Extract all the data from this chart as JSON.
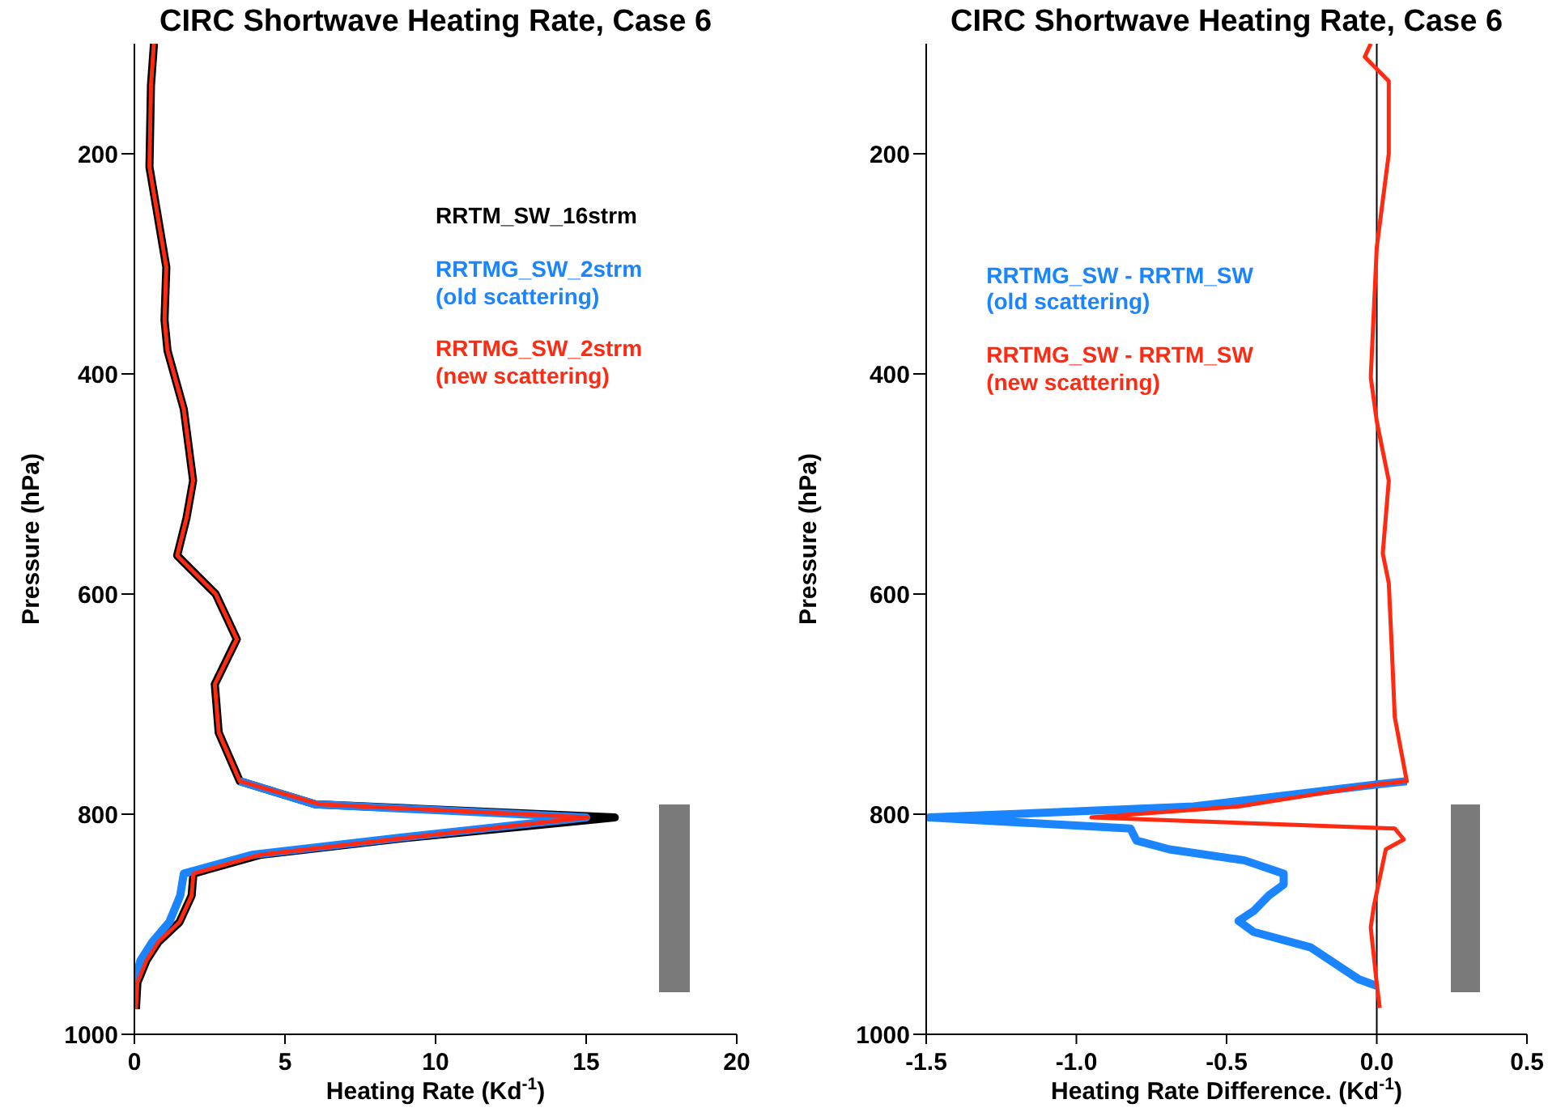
{
  "chart_data": [
    {
      "type": "line",
      "title": "CIRC Shortwave Heating Rate, Case 6",
      "xlabel": "Heating Rate (Kd$^{-1}$)",
      "ylabel": "Pressure (hPa)",
      "xlim": [
        0,
        20
      ],
      "xticks": [
        0,
        5,
        10,
        15,
        20
      ],
      "ylim": [
        1000,
        100
      ],
      "yticks": [
        200,
        400,
        600,
        800,
        1000
      ],
      "grid": false,
      "legend": "top right",
      "marker": "none",
      "line_style": "solid",
      "series": [
        {
          "name": "RRTM_SW_16strm",
          "color": "#000000",
          "x": [
            0.65,
            0.55,
            0.5,
            1.06,
            1.0,
            1.1,
            1.64,
            1.95,
            1.73,
            1.42,
            2.7,
            3.4,
            2.67,
            2.8,
            3.5,
            6.0,
            15.95,
            8.85,
            4.16,
            1.96,
            1.9,
            1.5,
            0.8,
            0.4,
            0.1,
            0.05
          ],
          "values": [
            100,
            138,
            212,
            303,
            351,
            379,
            432,
            497,
            531,
            565,
            600,
            641,
            682,
            726,
            770,
            791,
            803,
            822,
            837,
            854,
            874,
            898,
            916,
            933,
            953,
            977
          ]
        },
        {
          "name": "RRTMG_SW_2strm\n(old scattering)",
          "color": "#1a85ff",
          "x": [
            3.5,
            6.0,
            15.0,
            8.6,
            3.9,
            1.64,
            1.52,
            1.16,
            0.6,
            0.2,
            0.0
          ],
          "values": [
            770,
            791,
            803,
            822,
            837,
            854,
            874,
            898,
            916,
            933,
            953
          ]
        },
        {
          "name": "RRTMG_SW_2strm\n(new scattering)",
          "color": "#ff2a12",
          "x": [
            0.65,
            0.55,
            0.5,
            1.06,
            1.0,
            1.1,
            1.64,
            1.95,
            1.73,
            1.42,
            2.7,
            3.4,
            2.67,
            2.8,
            3.5,
            6.15,
            15.06,
            8.85,
            4.16,
            1.96,
            1.9,
            1.5,
            0.8,
            0.4,
            0.1,
            0.05
          ],
          "values": [
            100,
            138,
            212,
            303,
            351,
            379,
            432,
            497,
            531,
            565,
            600,
            641,
            682,
            726,
            770,
            791,
            803,
            822,
            837,
            854,
            874,
            898,
            916,
            933,
            953,
            977
          ]
        }
      ]
    },
    {
      "type": "line",
      "title": "CIRC Shortwave Heating Rate, Case 6",
      "xlabel": "Heating Rate Difference. (Kd$^{-1}$)",
      "ylabel": "Pressure (hPa)",
      "xlim": [
        -1.5,
        0.5
      ],
      "xticks": [
        {
          "value": -1.5,
          "label": "-1.5"
        },
        {
          "value": -1,
          "label": "-1.0"
        },
        {
          "value": -0.5,
          "label": "-0.5"
        },
        {
          "value": 0,
          "label": "0.0"
        },
        {
          "value": 0.5,
          "label": "0.5"
        }
      ],
      "ylim": [
        1000,
        100
      ],
      "yticks": [
        200,
        400,
        600,
        800,
        1000
      ],
      "grid": false,
      "legend": "top left",
      "marker": "none",
      "line_style": "solid",
      "ref_lines": [
        {
          "axis": "x",
          "value": 0,
          "color": "#000000"
        }
      ],
      "series": [
        {
          "name": "RRTMG_SW - RRTM_SW\n(old scattering)",
          "color": "#1a85ff",
          "x": [
            0.1,
            0.0,
            -0.61,
            -1.49,
            -0.82,
            -0.8,
            -0.69,
            -0.44,
            -0.31,
            -0.31,
            -0.36,
            -0.41,
            -0.46,
            -0.41,
            -0.22,
            -0.06,
            0.0
          ],
          "values": [
            770,
            773,
            793,
            803,
            813,
            824,
            832,
            842,
            854,
            864,
            874,
            888,
            897,
            907,
            921,
            950,
            956
          ]
        },
        {
          "name": "RRTMG_SW - RRTM_SW\n(new scattering)",
          "color": "#ff2a12",
          "x": [
            -0.02,
            -0.04,
            0.04,
            0.04,
            0.0,
            -0.02,
            0.0,
            0.04,
            0.02,
            0.04,
            0.05,
            0.06,
            0.1,
            0.0,
            -0.46,
            -0.95,
            0.06,
            0.09,
            0.03,
            -0.01,
            -0.02,
            0.0,
            0.01
          ],
          "values": [
            100,
            112,
            134,
            200,
            285,
            403,
            443,
            497,
            563,
            590,
            649,
            712,
            770,
            773,
            793,
            803,
            813,
            823,
            832,
            884,
            903,
            954,
            976
          ]
        }
      ]
    }
  ]
}
